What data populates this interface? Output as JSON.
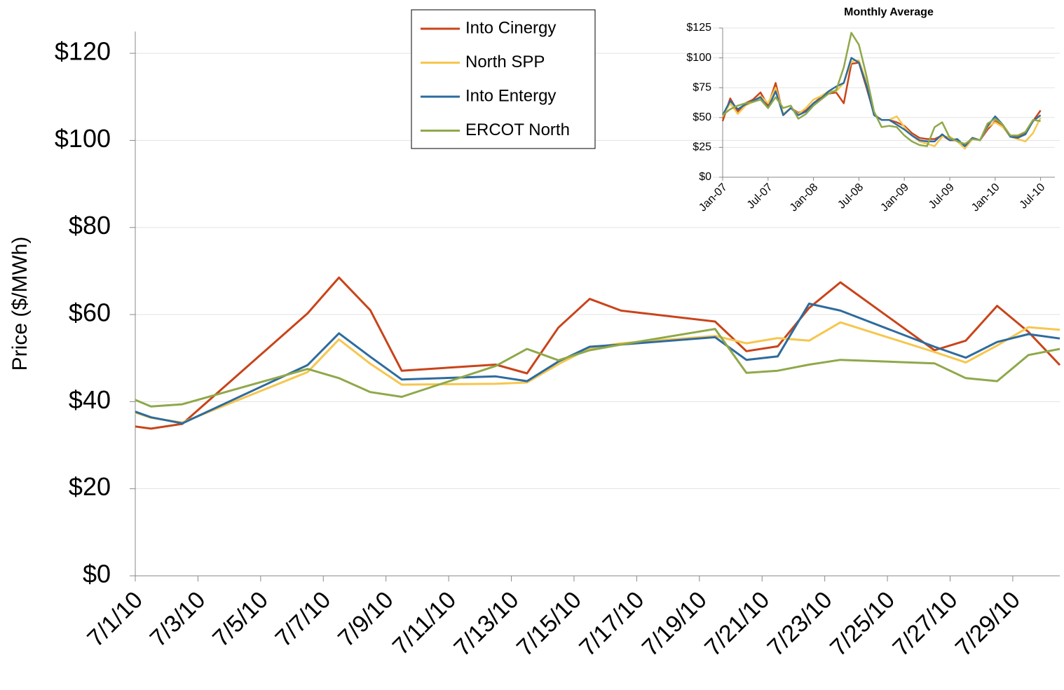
{
  "chart_data": [
    {
      "type": "line",
      "ylabel": "Price ($/MWh)",
      "x": [
        1,
        1.5,
        2.5,
        6.5,
        7.5,
        8.5,
        9.5,
        12.5,
        13.5,
        14.5,
        15.5,
        16.5,
        19.5,
        20.5,
        21.5,
        22.5,
        23.5,
        26.5,
        27.5,
        28.5,
        29.5,
        30.5
      ],
      "xlim": [
        1,
        30.5
      ],
      "xticks": [
        {
          "value": 1,
          "label": "7/1/10"
        },
        {
          "value": 3,
          "label": "7/3/10"
        },
        {
          "value": 5,
          "label": "7/5/10"
        },
        {
          "value": 7,
          "label": "7/7/10"
        },
        {
          "value": 9,
          "label": "7/9/10"
        },
        {
          "value": 11,
          "label": "7/11/10"
        },
        {
          "value": 13,
          "label": "7/13/10"
        },
        {
          "value": 15,
          "label": "7/15/10"
        },
        {
          "value": 17,
          "label": "7/17/10"
        },
        {
          "value": 19,
          "label": "7/19/10"
        },
        {
          "value": 21,
          "label": "7/21/10"
        },
        {
          "value": 23,
          "label": "7/23/10"
        },
        {
          "value": 25,
          "label": "7/25/10"
        },
        {
          "value": 27,
          "label": "7/27/10"
        },
        {
          "value": 29,
          "label": "7/29/10"
        }
      ],
      "ylim": [
        0,
        125
      ],
      "yticks": [
        {
          "value": 0,
          "label": "$0"
        },
        {
          "value": 20,
          "label": "$20"
        },
        {
          "value": 40,
          "label": "$40"
        },
        {
          "value": 60,
          "label": "$60"
        },
        {
          "value": 80,
          "label": "$80"
        },
        {
          "value": 100,
          "label": "$100"
        },
        {
          "value": 120,
          "label": "$120"
        }
      ],
      "grid": true,
      "legend": "top",
      "series": [
        {
          "name": "Into Cinergy",
          "color": "#c8441a",
          "values": [
            34.3,
            33.8,
            34.9,
            60.3,
            68.5,
            61,
            47.1,
            48.5,
            46.5,
            57,
            63.6,
            60.9,
            58.4,
            51.6,
            52.7,
            61.5,
            67.4,
            51.8,
            54,
            62,
            56,
            48.4
          ]
        },
        {
          "name": "North SPP",
          "color": "#f6c64e",
          "values": [
            37.5,
            36.3,
            35.2,
            46.8,
            54.3,
            48.7,
            43.9,
            44.1,
            44.4,
            48.6,
            52.3,
            53.4,
            55.1,
            53.4,
            54.6,
            54,
            58.2,
            51.4,
            49,
            52.9,
            57.1,
            56.5
          ]
        },
        {
          "name": "Into Entergy",
          "color": "#2e6b9e",
          "values": [
            37.7,
            36.4,
            35,
            48.4,
            55.7,
            50.3,
            45.1,
            45.8,
            44.7,
            49.2,
            52.6,
            53.1,
            54.8,
            49.6,
            50.4,
            62.5,
            60.9,
            52.6,
            50.1,
            53.7,
            55.5,
            54.5
          ]
        },
        {
          "name": "ERCOT North",
          "color": "#8fa84a",
          "values": [
            40.4,
            38.9,
            39.4,
            47.5,
            45.4,
            42.2,
            41.1,
            48.2,
            52.1,
            49.5,
            51.8,
            53.1,
            56.7,
            46.6,
            47.1,
            48.5,
            49.6,
            48.8,
            45.4,
            44.7,
            50.7,
            52.1
          ]
        }
      ]
    },
    {
      "type": "line",
      "title": "Monthly Average",
      "categories": [
        "Jan-07",
        null,
        null,
        null,
        null,
        null,
        "Jul-07",
        null,
        null,
        null,
        null,
        null,
        "Jan-08",
        null,
        null,
        null,
        null,
        null,
        "Jul-08",
        null,
        null,
        null,
        null,
        null,
        "Jan-09",
        null,
        null,
        null,
        null,
        null,
        "Jul-09",
        null,
        null,
        null,
        null,
        null,
        "Jan-10",
        null,
        null,
        null,
        null,
        null,
        "Jul-10"
      ],
      "ylim": [
        0,
        125
      ],
      "yticks": [
        {
          "value": 0,
          "label": "$0"
        },
        {
          "value": 25,
          "label": "$25"
        },
        {
          "value": 50,
          "label": "$50"
        },
        {
          "value": 75,
          "label": "$75"
        },
        {
          "value": 100,
          "label": "$100"
        },
        {
          "value": 125,
          "label": "$125"
        }
      ],
      "grid": true,
      "series": [
        {
          "color": "#c8441a",
          "values": [
            47,
            66,
            55,
            62,
            65,
            71,
            60,
            79,
            52,
            58,
            54,
            56,
            62,
            67,
            70,
            71,
            62,
            95,
            96,
            75,
            53,
            48,
            48,
            46,
            43,
            37,
            33,
            32,
            32,
            35,
            31,
            31,
            27,
            33,
            31,
            40,
            47,
            43,
            35,
            34,
            37,
            47,
            56
          ]
        },
        {
          "color": "#f6c64e",
          "values": [
            51,
            62,
            53,
            60,
            63,
            68,
            62,
            75,
            53,
            58,
            53,
            58,
            65,
            68,
            72,
            72,
            79,
            97,
            98,
            80,
            53,
            48,
            48,
            51,
            42,
            35,
            30,
            28,
            26,
            34,
            34,
            30,
            24,
            32,
            31,
            42,
            46,
            42,
            34,
            32,
            30,
            37,
            50
          ]
        },
        {
          "color": "#2e6b9e",
          "values": [
            52,
            64,
            57,
            61,
            64,
            67,
            58,
            72,
            52,
            58,
            52,
            55,
            62,
            66,
            72,
            76,
            79,
            100,
            96,
            77,
            52,
            48,
            48,
            44,
            40,
            35,
            31,
            30,
            30,
            36,
            31,
            32,
            26,
            33,
            31,
            43,
            51,
            44,
            34,
            33,
            36,
            47,
            52
          ]
        },
        {
          "color": "#8fa84a",
          "values": [
            52,
            57,
            60,
            62,
            63,
            65,
            58,
            67,
            58,
            60,
            49,
            53,
            60,
            65,
            70,
            73,
            92,
            121,
            111,
            85,
            55,
            42,
            43,
            42,
            35,
            30,
            27,
            26,
            42,
            46,
            33,
            30,
            28,
            32,
            31,
            45,
            49,
            44,
            35,
            35,
            38,
            48,
            47
          ]
        }
      ]
    }
  ]
}
